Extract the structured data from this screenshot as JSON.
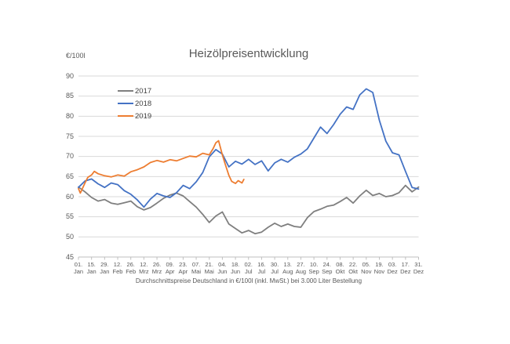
{
  "chart": {
    "title": "Heizölpreisentwicklung",
    "y_unit": "€/100l",
    "subtitle": "Durchschnittspreise Deutschland in €/100l (inkl. MwSt.) bei 3.000 Liter Bestellung"
  },
  "chart_data": {
    "type": "line",
    "title": "Heizölpreisentwicklung",
    "subtitle": "Durchschnittspreise Deutschland in €/100l (inkl. MwSt.) bei 3.000 Liter Bestellung",
    "ylabel": "€/100l",
    "ylim": [
      45,
      90
    ],
    "y_ticks": [
      45,
      50,
      55,
      60,
      65,
      70,
      75,
      80,
      85,
      90
    ],
    "grid": "horizontal",
    "gridline_color": "#D9D9D9",
    "axis_color": "#BFBFBF",
    "legend_position": "inside-top-left",
    "x_unit": "day_of_year",
    "x_ticks": [
      {
        "day": 1,
        "top": "01.",
        "bottom": "Jan"
      },
      {
        "day": 15,
        "top": "15.",
        "bottom": "Jan"
      },
      {
        "day": 29,
        "top": "29.",
        "bottom": "Jan"
      },
      {
        "day": 43,
        "top": "12.",
        "bottom": "Feb"
      },
      {
        "day": 57,
        "top": "26.",
        "bottom": "Feb"
      },
      {
        "day": 71,
        "top": "12.",
        "bottom": "Mrz"
      },
      {
        "day": 85,
        "top": "26.",
        "bottom": "Mrz"
      },
      {
        "day": 99,
        "top": "09.",
        "bottom": "Apr"
      },
      {
        "day": 113,
        "top": "23.",
        "bottom": "Apr"
      },
      {
        "day": 127,
        "top": "07.",
        "bottom": "Mai"
      },
      {
        "day": 141,
        "top": "21.",
        "bottom": "Mai"
      },
      {
        "day": 155,
        "top": "04.",
        "bottom": "Jun"
      },
      {
        "day": 169,
        "top": "18.",
        "bottom": "Jun"
      },
      {
        "day": 183,
        "top": "02.",
        "bottom": "Jul"
      },
      {
        "day": 197,
        "top": "16.",
        "bottom": "Jul"
      },
      {
        "day": 211,
        "top": "30.",
        "bottom": "Jul"
      },
      {
        "day": 225,
        "top": "13.",
        "bottom": "Aug"
      },
      {
        "day": 239,
        "top": "27.",
        "bottom": "Aug"
      },
      {
        "day": 253,
        "top": "10.",
        "bottom": "Sep"
      },
      {
        "day": 267,
        "top": "24.",
        "bottom": "Sep"
      },
      {
        "day": 281,
        "top": "08.",
        "bottom": "Okt"
      },
      {
        "day": 295,
        "top": "22.",
        "bottom": "Okt"
      },
      {
        "day": 309,
        "top": "05.",
        "bottom": "Nov"
      },
      {
        "day": 323,
        "top": "19.",
        "bottom": "Nov"
      },
      {
        "day": 337,
        "top": "03.",
        "bottom": "Dez"
      },
      {
        "day": 351,
        "top": "17.",
        "bottom": "Dez"
      },
      {
        "day": 365,
        "top": "31.",
        "bottom": "Dez"
      }
    ],
    "series": [
      {
        "name": "2017",
        "color": "#7F7F7F",
        "points": [
          [
            1,
            62.4
          ],
          [
            8,
            61.2
          ],
          [
            15,
            59.8
          ],
          [
            22,
            58.9
          ],
          [
            29,
            59.3
          ],
          [
            36,
            58.4
          ],
          [
            43,
            58.1
          ],
          [
            50,
            58.5
          ],
          [
            57,
            58.9
          ],
          [
            64,
            57.5
          ],
          [
            71,
            56.7
          ],
          [
            78,
            57.3
          ],
          [
            85,
            58.4
          ],
          [
            92,
            59.6
          ],
          [
            99,
            60.4
          ],
          [
            106,
            60.9
          ],
          [
            113,
            60.2
          ],
          [
            120,
            58.8
          ],
          [
            127,
            57.4
          ],
          [
            134,
            55.6
          ],
          [
            141,
            53.6
          ],
          [
            148,
            55.2
          ],
          [
            155,
            56.2
          ],
          [
            162,
            53.2
          ],
          [
            169,
            52.1
          ],
          [
            176,
            51.0
          ],
          [
            183,
            51.6
          ],
          [
            190,
            50.8
          ],
          [
            197,
            51.2
          ],
          [
            204,
            52.4
          ],
          [
            211,
            53.4
          ],
          [
            218,
            52.6
          ],
          [
            225,
            53.2
          ],
          [
            232,
            52.6
          ],
          [
            239,
            52.4
          ],
          [
            246,
            54.8
          ],
          [
            253,
            56.3
          ],
          [
            260,
            56.9
          ],
          [
            267,
            57.6
          ],
          [
            274,
            57.9
          ],
          [
            281,
            58.8
          ],
          [
            288,
            59.8
          ],
          [
            295,
            58.4
          ],
          [
            302,
            60.2
          ],
          [
            309,
            61.6
          ],
          [
            316,
            60.3
          ],
          [
            323,
            60.8
          ],
          [
            330,
            60.0
          ],
          [
            337,
            60.3
          ],
          [
            344,
            61.0
          ],
          [
            351,
            62.8
          ],
          [
            358,
            61.2
          ],
          [
            365,
            62.4
          ]
        ]
      },
      {
        "name": "2018",
        "color": "#4472C4",
        "points": [
          [
            1,
            62.3
          ],
          [
            8,
            63.9
          ],
          [
            15,
            64.4
          ],
          [
            22,
            63.2
          ],
          [
            29,
            62.3
          ],
          [
            36,
            63.4
          ],
          [
            43,
            63.0
          ],
          [
            50,
            61.5
          ],
          [
            57,
            60.6
          ],
          [
            64,
            59.2
          ],
          [
            71,
            57.4
          ],
          [
            78,
            59.4
          ],
          [
            85,
            60.8
          ],
          [
            92,
            60.2
          ],
          [
            99,
            59.8
          ],
          [
            106,
            61.0
          ],
          [
            113,
            62.8
          ],
          [
            120,
            62.0
          ],
          [
            127,
            63.7
          ],
          [
            134,
            66.0
          ],
          [
            141,
            69.9
          ],
          [
            148,
            71.7
          ],
          [
            155,
            70.6
          ],
          [
            162,
            67.4
          ],
          [
            169,
            68.8
          ],
          [
            176,
            68.1
          ],
          [
            183,
            69.3
          ],
          [
            190,
            68.0
          ],
          [
            197,
            68.9
          ],
          [
            204,
            66.4
          ],
          [
            211,
            68.4
          ],
          [
            218,
            69.3
          ],
          [
            225,
            68.6
          ],
          [
            232,
            69.8
          ],
          [
            239,
            70.6
          ],
          [
            246,
            71.9
          ],
          [
            253,
            74.6
          ],
          [
            260,
            77.3
          ],
          [
            267,
            75.7
          ],
          [
            274,
            77.9
          ],
          [
            281,
            80.5
          ],
          [
            288,
            82.3
          ],
          [
            295,
            81.7
          ],
          [
            302,
            85.3
          ],
          [
            309,
            86.8
          ],
          [
            316,
            85.9
          ],
          [
            323,
            79.0
          ],
          [
            330,
            73.8
          ],
          [
            337,
            70.9
          ],
          [
            344,
            70.4
          ],
          [
            351,
            66.3
          ],
          [
            358,
            62.3
          ],
          [
            365,
            61.9
          ]
        ]
      },
      {
        "name": "2019",
        "color": "#ED7D31",
        "points": [
          [
            1,
            62.0
          ],
          [
            3,
            60.9
          ],
          [
            8,
            63.4
          ],
          [
            11,
            64.8
          ],
          [
            15,
            65.4
          ],
          [
            18,
            66.3
          ],
          [
            22,
            65.7
          ],
          [
            29,
            65.2
          ],
          [
            36,
            64.9
          ],
          [
            43,
            65.4
          ],
          [
            50,
            65.1
          ],
          [
            57,
            66.2
          ],
          [
            64,
            66.7
          ],
          [
            71,
            67.4
          ],
          [
            78,
            68.5
          ],
          [
            85,
            69.0
          ],
          [
            92,
            68.6
          ],
          [
            99,
            69.2
          ],
          [
            106,
            68.9
          ],
          [
            113,
            69.5
          ],
          [
            120,
            70.1
          ],
          [
            127,
            69.9
          ],
          [
            134,
            70.8
          ],
          [
            141,
            70.4
          ],
          [
            145,
            71.9
          ],
          [
            148,
            73.4
          ],
          [
            151,
            73.9
          ],
          [
            155,
            70.4
          ],
          [
            158,
            68.1
          ],
          [
            162,
            65.3
          ],
          [
            165,
            63.8
          ],
          [
            169,
            63.3
          ],
          [
            172,
            64.0
          ],
          [
            176,
            63.4
          ],
          [
            178,
            64.3
          ]
        ]
      }
    ]
  }
}
